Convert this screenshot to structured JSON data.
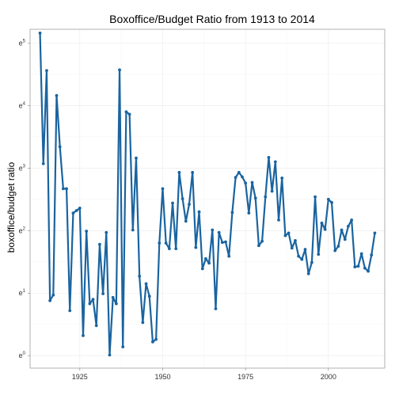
{
  "chart_data": {
    "type": "line",
    "title": "Boxoffice/Budget Ratio from 1913 to 2014",
    "xlabel": "",
    "ylabel": "boxoffice/budget ratio",
    "y_scale": "log (natural)",
    "xlim": [
      1910,
      2017
    ],
    "ylim_exponent": [
      -0.2,
      5.22
    ],
    "x_ticks": [
      {
        "value": 1925,
        "label": "1925"
      },
      {
        "value": 1950,
        "label": "1950"
      },
      {
        "value": 1975,
        "label": "1975"
      },
      {
        "value": 2000,
        "label": "2000"
      }
    ],
    "y_ticks": [
      {
        "exp": 0,
        "base": "e",
        "sup": "0"
      },
      {
        "exp": 1,
        "base": "e",
        "sup": "1"
      },
      {
        "exp": 2,
        "base": "e",
        "sup": "2"
      },
      {
        "exp": 3,
        "base": "e",
        "sup": "3"
      },
      {
        "exp": 4,
        "base": "e",
        "sup": "4"
      },
      {
        "exp": 5,
        "base": "e",
        "sup": "5"
      }
    ],
    "grid": true,
    "line_color": "#1a64a0",
    "series": [
      {
        "name": "",
        "x": [
          1913,
          1914,
          1915,
          1916,
          1917,
          1918,
          1919,
          1920,
          1921,
          1922,
          1923,
          1924,
          1925,
          1926,
          1927,
          1928,
          1929,
          1930,
          1931,
          1932,
          1933,
          1934,
          1935,
          1936,
          1937,
          1938,
          1939,
          1940,
          1941,
          1942,
          1943,
          1944,
          1945,
          1946,
          1947,
          1948,
          1949,
          1950,
          1951,
          1952,
          1953,
          1954,
          1955,
          1956,
          1957,
          1958,
          1959,
          1960,
          1961,
          1962,
          1963,
          1964,
          1965,
          1966,
          1967,
          1968,
          1969,
          1970,
          1971,
          1972,
          1973,
          1974,
          1975,
          1976,
          1977,
          1978,
          1979,
          1980,
          1981,
          1982,
          1983,
          1984,
          1985,
          1986,
          1987,
          1988,
          1989,
          1990,
          1991,
          1992,
          1993,
          1994,
          1995,
          1996,
          1997,
          1998,
          1999,
          2000,
          2001,
          2002,
          2003,
          2004,
          2005,
          2006,
          2007,
          2008,
          2009,
          2010,
          2011,
          2012,
          2013,
          2014
        ],
        "log_y": [
          5.16,
          3.07,
          4.56,
          0.88,
          0.97,
          4.16,
          3.34,
          2.67,
          2.67,
          0.72,
          2.28,
          2.32,
          2.36,
          0.32,
          1.99,
          0.83,
          0.9,
          0.48,
          1.78,
          0.99,
          1.97,
          0.01,
          0.93,
          0.83,
          4.57,
          0.14,
          3.9,
          3.86,
          2.01,
          3.16,
          1.27,
          0.53,
          1.15,
          0.95,
          0.22,
          0.26,
          1.8,
          2.67,
          1.8,
          1.71,
          2.44,
          1.71,
          2.93,
          2.51,
          2.15,
          2.42,
          2.93,
          1.73,
          2.3,
          1.39,
          1.55,
          1.48,
          2.01,
          0.75,
          1.97,
          1.81,
          1.82,
          1.59,
          2.29,
          2.85,
          2.93,
          2.86,
          2.76,
          2.28,
          2.77,
          2.52,
          1.76,
          1.83,
          2.54,
          3.17,
          2.63,
          3.1,
          2.17,
          2.84,
          1.92,
          1.96,
          1.72,
          1.84,
          1.59,
          1.54,
          1.7,
          1.31,
          1.49,
          2.54,
          1.62,
          2.12,
          2.02,
          2.5,
          2.45,
          1.68,
          1.75,
          2.01,
          1.86,
          2.07,
          2.17,
          1.42,
          1.43,
          1.63,
          1.4,
          1.35,
          1.61,
          1.96
        ]
      }
    ]
  }
}
